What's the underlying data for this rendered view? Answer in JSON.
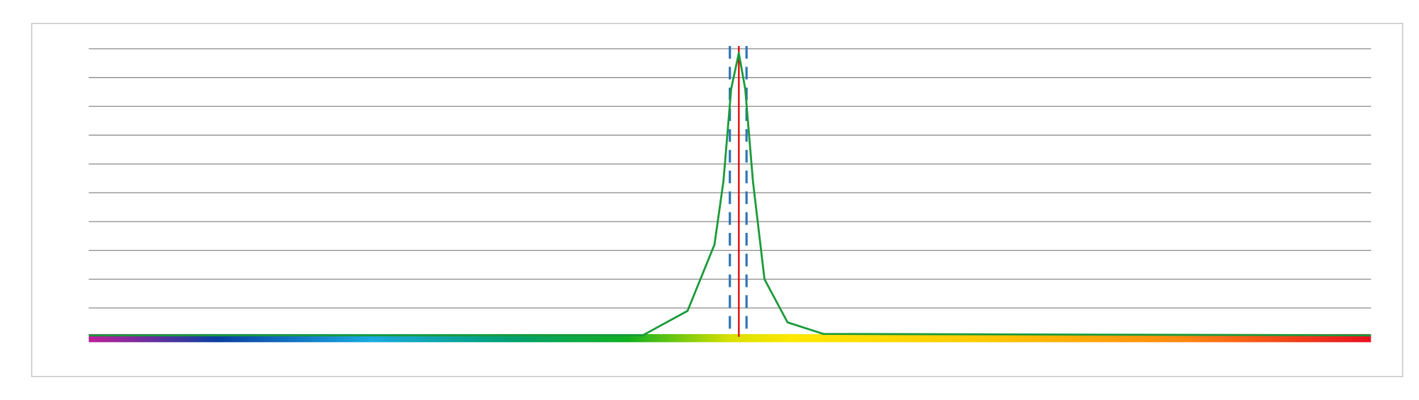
{
  "chart_data": {
    "type": "line",
    "x": [
      0,
      43.2,
      46.7,
      48.8,
      49.5,
      50.1,
      50.7,
      51.2,
      51.8,
      52.7,
      54.5,
      57.3,
      100
    ],
    "series": [
      {
        "color": "#1a9a3a",
        "values": [
          0.05,
          0.05,
          0.9,
          3.2,
          5.4,
          8.6,
          9.85,
          8.6,
          5.4,
          2.0,
          0.5,
          0.1,
          0.05
        ]
      }
    ],
    "xlim": [
      0,
      100
    ],
    "ylim": [
      0,
      10
    ],
    "yticks": [
      1,
      2,
      3,
      4,
      5,
      6,
      7,
      8,
      9,
      10
    ],
    "grid": true,
    "vlines": [
      {
        "color": "#2e75b6",
        "value": 50.0,
        "style": "dashed"
      },
      {
        "color": "#2e75b6",
        "value": 51.3,
        "style": "dashed"
      },
      {
        "color": "#e00000",
        "value": 50.7,
        "style": "solid"
      }
    ]
  }
}
